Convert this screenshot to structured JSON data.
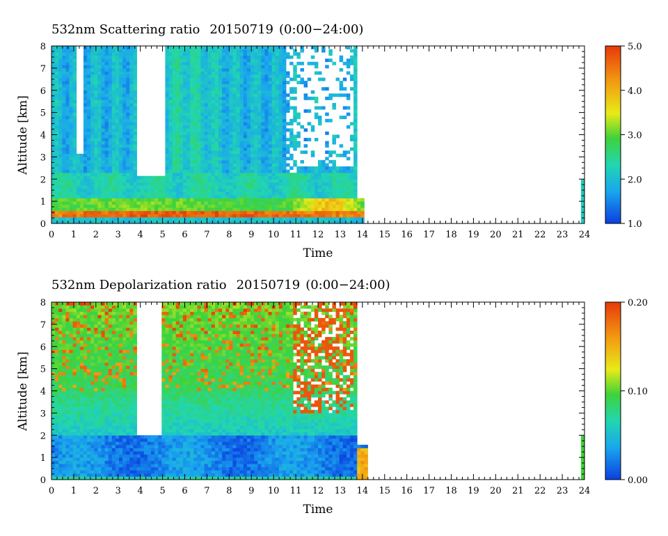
{
  "chart_data": [
    {
      "type": "heatmap",
      "title": "532nm Scattering ratio",
      "date": "20150719",
      "time_range": "(0:00−24:00)",
      "xlabel": "Time",
      "ylabel": "Altitude [km]",
      "xlim": [
        0,
        24
      ],
      "ylim": [
        0,
        8
      ],
      "x_ticks": [
        "0",
        "1",
        "2",
        "3",
        "4",
        "5",
        "6",
        "7",
        "8",
        "9",
        "10",
        "11",
        "12",
        "13",
        "14",
        "15",
        "16",
        "17",
        "18",
        "19",
        "20",
        "21",
        "22",
        "23",
        "24"
      ],
      "y_ticks": [
        "0",
        "1",
        "2",
        "3",
        "4",
        "5",
        "6",
        "7",
        "8"
      ],
      "colorbar": {
        "range": [
          1.0,
          5.0
        ],
        "ticks": [
          "1.0",
          "2.0",
          "3.0",
          "4.0",
          "5.0"
        ],
        "colormap": [
          "#0b3fe0",
          "#1aa6ee",
          "#22d6b0",
          "#3fd23a",
          "#e8ea18",
          "#f29a12",
          "#e63a0a"
        ]
      },
      "data_extent_hours": [
        0,
        14.2
      ],
      "notes": "Boundary layer high values (orange/red) 0.2–1.2 km; cloud gaps (white) above 2 km around 3.8–5.2 h and after 11 h"
    },
    {
      "type": "heatmap",
      "title": "532nm Depolarization ratio",
      "date": "20150719",
      "time_range": "(0:00−24:00)",
      "xlabel": "Time",
      "ylabel": "Altitude [km]",
      "xlim": [
        0,
        24
      ],
      "ylim": [
        0,
        8
      ],
      "x_ticks": [
        "0",
        "1",
        "2",
        "3",
        "4",
        "5",
        "6",
        "7",
        "8",
        "9",
        "10",
        "11",
        "12",
        "13",
        "14",
        "15",
        "16",
        "17",
        "18",
        "19",
        "20",
        "21",
        "22",
        "23",
        "24"
      ],
      "y_ticks": [
        "0",
        "1",
        "2",
        "3",
        "4",
        "5",
        "6",
        "7",
        "8"
      ],
      "colorbar": {
        "range": [
          0.0,
          0.2
        ],
        "ticks": [
          "0.00",
          "0.10",
          "0.20"
        ],
        "colormap": [
          "#0b3fe0",
          "#1aa6ee",
          "#22d6b0",
          "#3fd23a",
          "#e8ea18",
          "#f29a12",
          "#e63a0a"
        ]
      },
      "data_extent_hours": [
        0,
        14.2
      ],
      "notes": "Low depolarization (blue) below 2 km; higher values (green to red) aloft"
    }
  ]
}
